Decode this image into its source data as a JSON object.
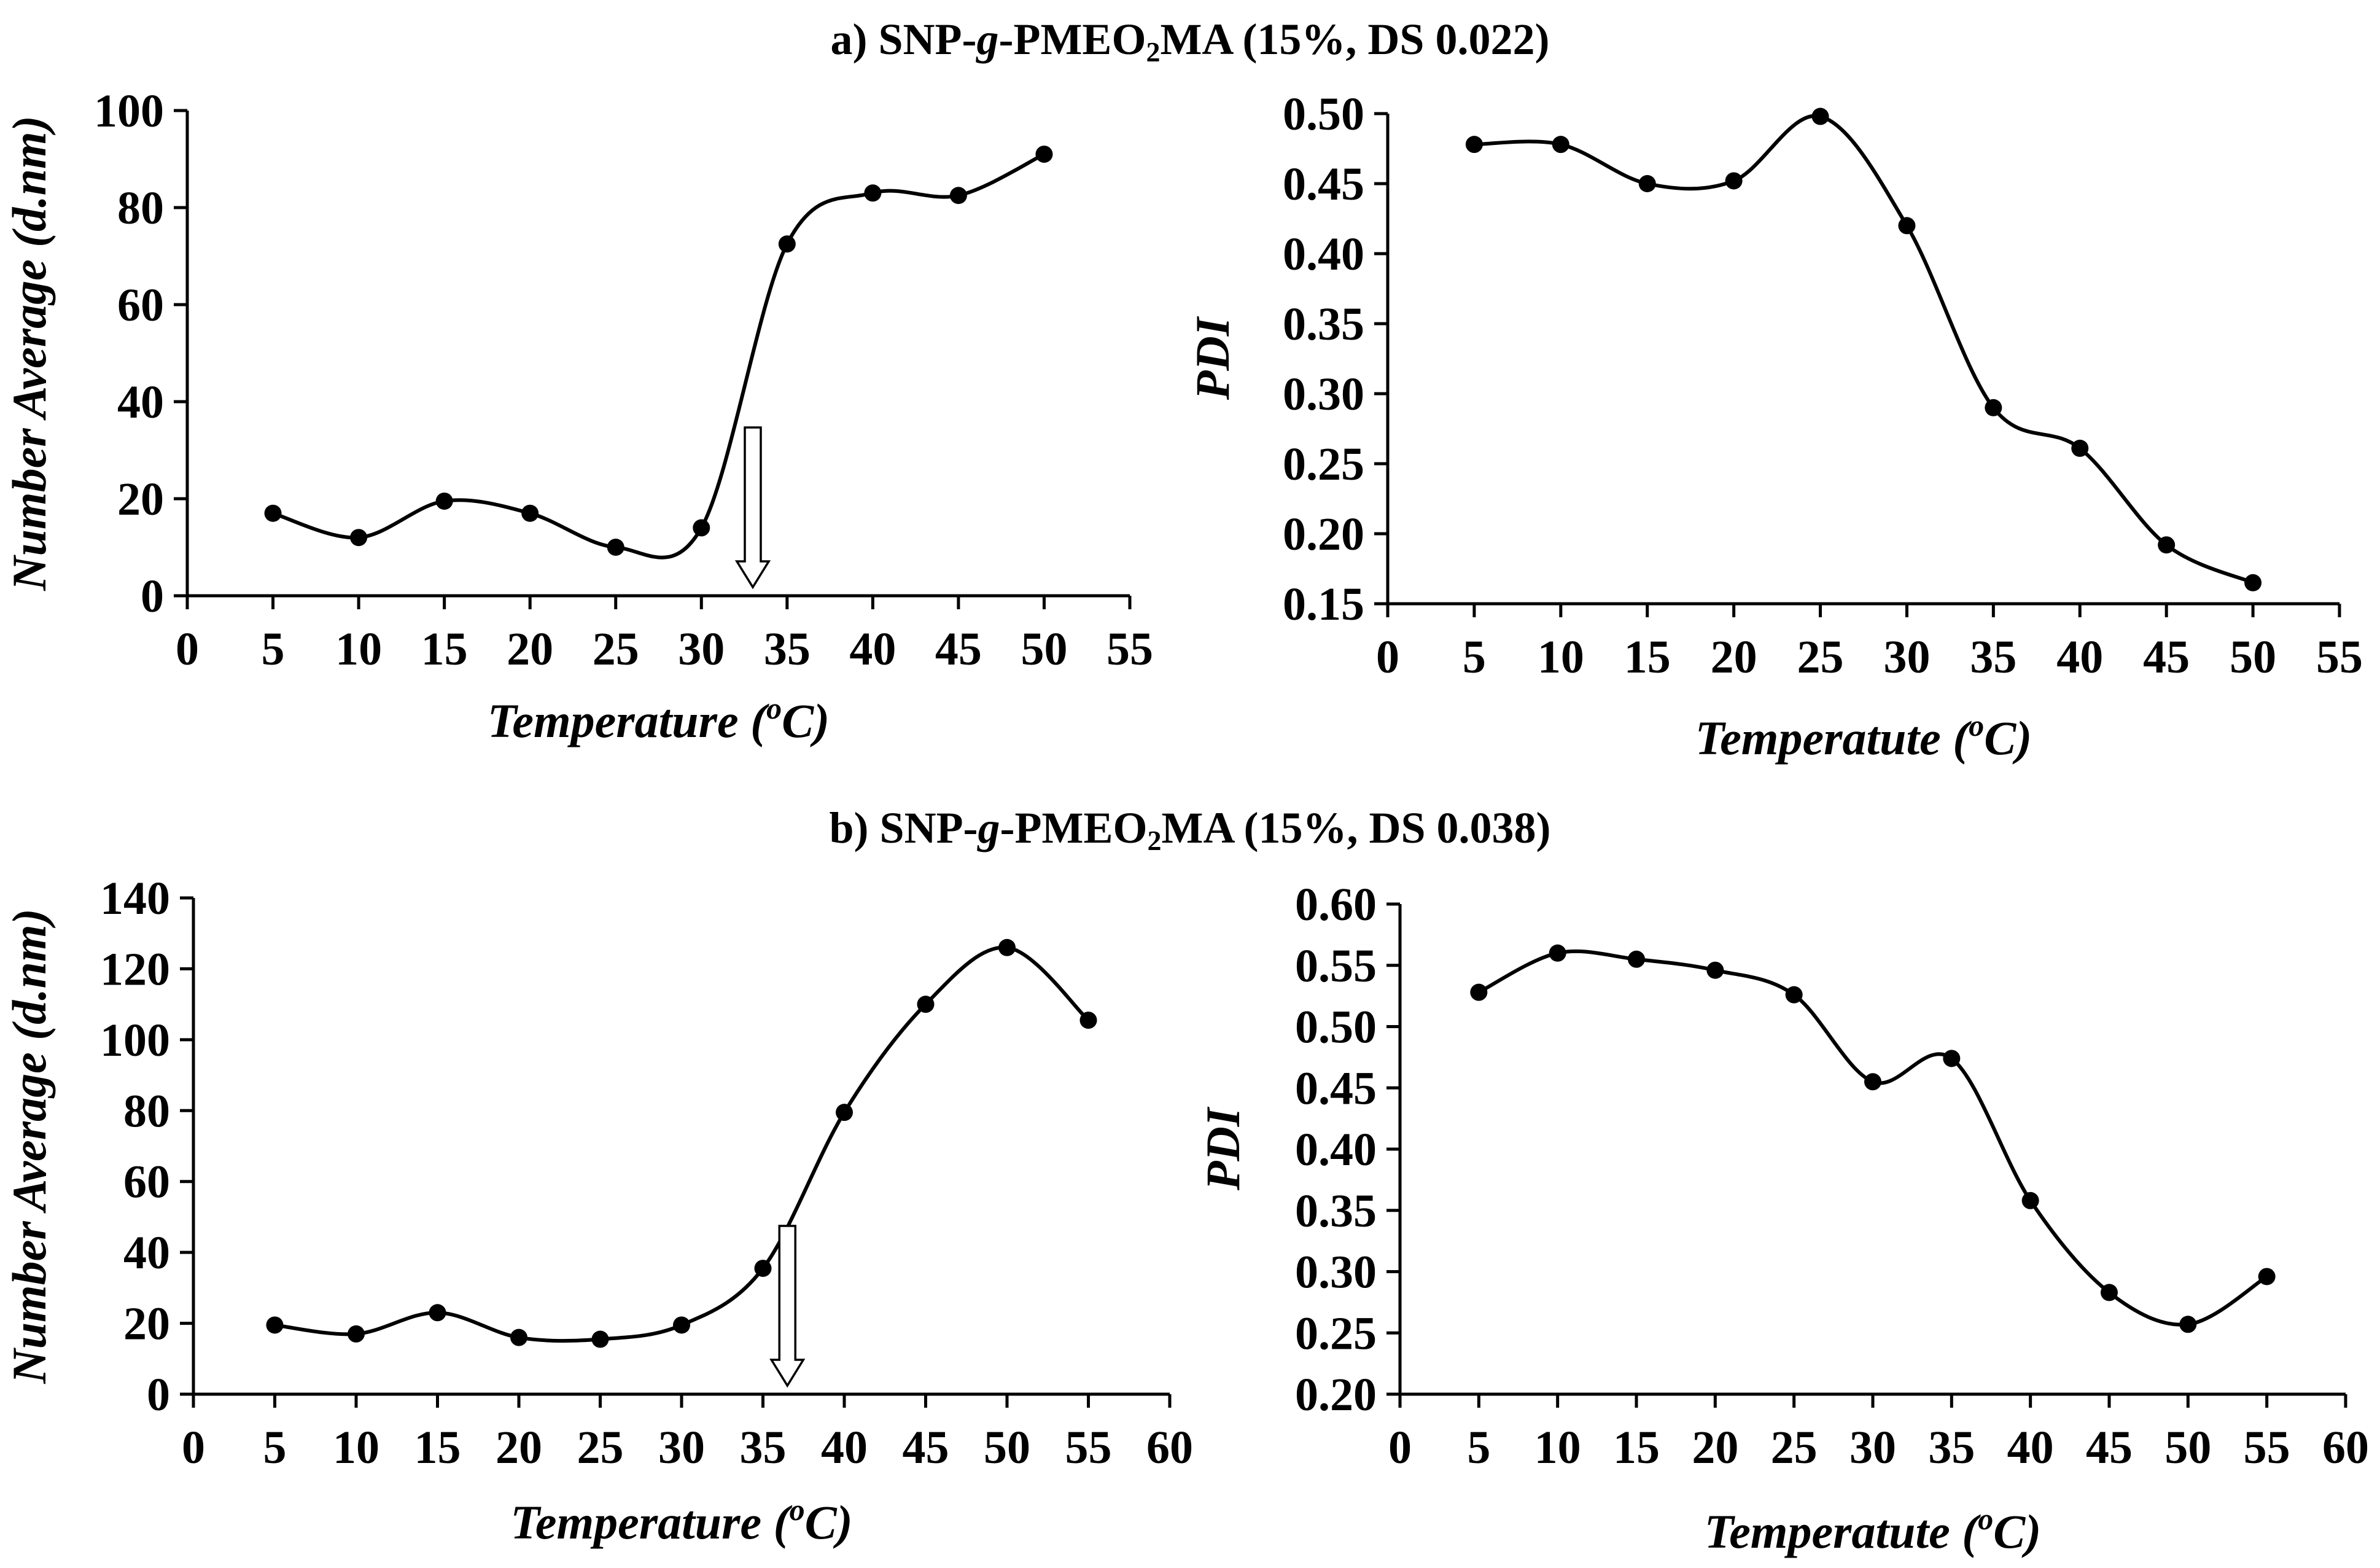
{
  "panels": [
    {
      "title_pre": "a) SNP-",
      "title_g": "g",
      "title_mid": "-PMEO",
      "title_sub": "2",
      "title_post": "MA (15%, DS 0.022)"
    },
    {
      "title_pre": "b) SNP-",
      "title_g": "g",
      "title_mid": "-PMEO",
      "title_sub": "2",
      "title_post": "MA (15%, DS 0.038)"
    }
  ],
  "chart_data": [
    {
      "id": "a-size",
      "type": "line",
      "smooth": true,
      "marker": "circle",
      "xlabel_pre": "Temperature (",
      "xlabel_sup": "o",
      "xlabel_post": "C)",
      "ylabel": "Number Average (d.nm)",
      "xlim": [
        0,
        55
      ],
      "xticks": [
        0,
        5,
        10,
        15,
        20,
        25,
        30,
        35,
        40,
        45,
        50,
        55
      ],
      "ylim": [
        0,
        100
      ],
      "yticks": [
        0,
        20,
        40,
        60,
        80,
        100
      ],
      "ydecimals": 0,
      "x": [
        5,
        10,
        15,
        20,
        25,
        30,
        35,
        40,
        45,
        50
      ],
      "y": [
        17,
        12,
        19.5,
        17,
        10,
        14,
        72.5,
        83,
        82.5,
        91
      ],
      "arrow_x": 33
    },
    {
      "id": "a-pdi",
      "type": "line",
      "smooth": true,
      "marker": "circle",
      "xlabel_pre": "Temperatute (",
      "xlabel_sup": "o",
      "xlabel_post": "C)",
      "ylabel": "PDI",
      "xlim": [
        0,
        55
      ],
      "xticks": [
        0,
        5,
        10,
        15,
        20,
        25,
        30,
        35,
        40,
        45,
        50,
        55
      ],
      "ylim": [
        0.15,
        0.5
      ],
      "yticks": [
        0.15,
        0.2,
        0.25,
        0.3,
        0.35,
        0.4,
        0.45,
        0.5
      ],
      "ydecimals": 2,
      "x": [
        5,
        10,
        15,
        20,
        25,
        30,
        35,
        40,
        45,
        50
      ],
      "y": [
        0.478,
        0.478,
        0.45,
        0.452,
        0.498,
        0.42,
        0.29,
        0.261,
        0.192,
        0.165
      ]
    },
    {
      "id": "b-size",
      "type": "line",
      "smooth": true,
      "marker": "circle",
      "xlabel_pre": "Temperature (",
      "xlabel_sup": "o",
      "xlabel_post": "C)",
      "ylabel": "Number Average (d.nm)",
      "xlim": [
        0,
        60
      ],
      "xticks": [
        0,
        5,
        10,
        15,
        20,
        25,
        30,
        35,
        40,
        45,
        50,
        55,
        60
      ],
      "ylim": [
        0,
        140
      ],
      "yticks": [
        0,
        20,
        40,
        60,
        80,
        100,
        120,
        140
      ],
      "ydecimals": 0,
      "x": [
        5,
        10,
        15,
        20,
        25,
        30,
        35,
        40,
        45,
        50,
        55
      ],
      "y": [
        19.5,
        17,
        23,
        16,
        15.5,
        19.5,
        35.5,
        79.5,
        110,
        126,
        105.5
      ],
      "arrow_x": 36.5
    },
    {
      "id": "b-pdi",
      "type": "line",
      "smooth": true,
      "marker": "circle",
      "xlabel_pre": "Temperatute (",
      "xlabel_sup": "o",
      "xlabel_post": "C)",
      "ylabel": "PDI",
      "xlim": [
        0,
        60
      ],
      "xticks": [
        0,
        5,
        10,
        15,
        20,
        25,
        30,
        35,
        40,
        45,
        50,
        55,
        60
      ],
      "ylim": [
        0.2,
        0.6
      ],
      "yticks": [
        0.2,
        0.25,
        0.3,
        0.35,
        0.4,
        0.45,
        0.5,
        0.55,
        0.6
      ],
      "ydecimals": 2,
      "x": [
        5,
        10,
        15,
        20,
        25,
        30,
        35,
        40,
        45,
        50,
        55
      ],
      "y": [
        0.528,
        0.56,
        0.555,
        0.546,
        0.526,
        0.455,
        0.474,
        0.358,
        0.283,
        0.257,
        0.296
      ]
    }
  ]
}
